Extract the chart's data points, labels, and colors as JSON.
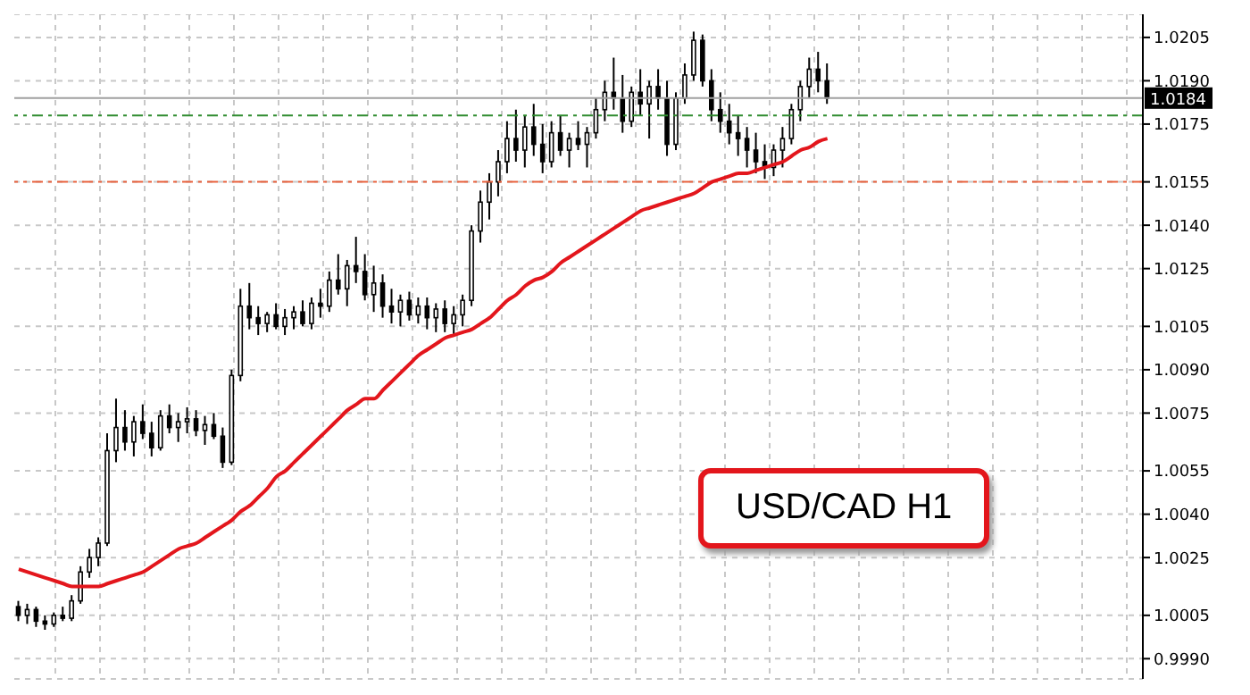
{
  "chart_data": {
    "type": "candlestick",
    "categories": [
      null,
      null,
      null,
      null,
      null,
      null,
      null,
      null,
      null,
      null,
      null,
      null,
      null,
      null,
      null,
      null,
      null,
      null,
      null,
      null,
      null,
      null,
      null,
      null,
      null,
      null,
      null,
      null,
      null,
      null,
      null,
      null,
      null,
      null,
      null,
      null,
      null,
      null,
      null,
      null,
      null,
      null,
      null,
      null,
      null,
      null,
      null,
      null,
      null,
      null,
      null,
      null,
      null,
      null,
      null,
      null,
      null,
      null,
      null,
      null,
      null,
      null,
      null,
      null,
      null,
      null,
      null,
      null,
      null,
      null,
      null,
      null,
      null,
      null,
      null,
      null,
      null,
      null,
      null,
      null,
      null,
      null,
      null,
      null,
      null,
      null,
      null,
      null,
      null,
      null,
      null,
      null,
      null,
      null,
      null,
      null,
      null,
      null,
      null,
      null,
      null,
      null,
      null,
      null,
      null,
      null,
      null,
      null,
      null,
      null,
      null,
      null,
      null,
      null,
      null,
      null,
      null,
      null,
      null,
      null,
      null,
      null,
      null,
      null,
      null,
      null,
      null
    ],
    "ohlc": [
      [
        1.0008,
        1.001,
        1.0003,
        1.0005
      ],
      [
        1.0005,
        1.0009,
        1.0002,
        1.0007
      ],
      [
        1.0007,
        1.0008,
        1.0001,
        1.0003
      ],
      [
        1.0003,
        1.0005,
        1.0,
        1.0002
      ],
      [
        1.0002,
        1.0006,
        1.0001,
        1.0005
      ],
      [
        1.0005,
        1.0008,
        1.0003,
        1.0004
      ],
      [
        1.0004,
        1.0012,
        1.0003,
        1.001
      ],
      [
        1.001,
        1.0022,
        1.0009,
        1.002
      ],
      [
        1.002,
        1.0028,
        1.0018,
        1.0025
      ],
      [
        1.0025,
        1.0032,
        1.0022,
        1.003
      ],
      [
        1.003,
        1.0068,
        1.0029,
        1.0062
      ],
      [
        1.0062,
        1.008,
        1.0058,
        1.007
      ],
      [
        1.007,
        1.0076,
        1.0062,
        1.0065
      ],
      [
        1.0065,
        1.0074,
        1.006,
        1.0072
      ],
      [
        1.0072,
        1.0078,
        1.0066,
        1.0068
      ],
      [
        1.0068,
        1.0072,
        1.006,
        1.0063
      ],
      [
        1.0063,
        1.0076,
        1.0062,
        1.0074
      ],
      [
        1.0074,
        1.0078,
        1.0068,
        1.007
      ],
      [
        1.007,
        1.0075,
        1.0065,
        1.0072
      ],
      [
        1.0072,
        1.0077,
        1.0068,
        1.0073
      ],
      [
        1.0073,
        1.0076,
        1.0067,
        1.0069
      ],
      [
        1.0069,
        1.0074,
        1.0064,
        1.0071
      ],
      [
        1.0071,
        1.0075,
        1.0066,
        1.0067
      ],
      [
        1.0067,
        1.007,
        1.0056,
        1.0058
      ],
      [
        1.0058,
        1.009,
        1.0057,
        1.0088
      ],
      [
        1.0088,
        1.0118,
        1.0086,
        1.0112
      ],
      [
        1.0112,
        1.012,
        1.0104,
        1.0108
      ],
      [
        1.0108,
        1.0112,
        1.0102,
        1.0106
      ],
      [
        1.0106,
        1.011,
        1.0103,
        1.0109
      ],
      [
        1.0109,
        1.0113,
        1.0104,
        1.0105
      ],
      [
        1.0105,
        1.0111,
        1.0102,
        1.0108
      ],
      [
        1.0108,
        1.0112,
        1.0104,
        1.011
      ],
      [
        1.011,
        1.0114,
        1.0105,
        1.0106
      ],
      [
        1.0106,
        1.0115,
        1.0104,
        1.0113
      ],
      [
        1.0113,
        1.0118,
        1.0108,
        1.0112
      ],
      [
        1.0112,
        1.0124,
        1.011,
        1.0121
      ],
      [
        1.0121,
        1.013,
        1.0116,
        1.0118
      ],
      [
        1.0118,
        1.0128,
        1.0112,
        1.0126
      ],
      [
        1.0126,
        1.0136,
        1.012,
        1.0124
      ],
      [
        1.0124,
        1.013,
        1.0114,
        1.0116
      ],
      [
        1.0116,
        1.0126,
        1.011,
        1.012
      ],
      [
        1.012,
        1.0123,
        1.0108,
        1.0112
      ],
      [
        1.0112,
        1.0118,
        1.0106,
        1.011
      ],
      [
        1.011,
        1.0116,
        1.0105,
        1.0114
      ],
      [
        1.0114,
        1.0117,
        1.0107,
        1.0109
      ],
      [
        1.0109,
        1.0115,
        1.0106,
        1.0112
      ],
      [
        1.0112,
        1.0115,
        1.0104,
        1.0108
      ],
      [
        1.0108,
        1.0113,
        1.0103,
        1.0111
      ],
      [
        1.0111,
        1.0114,
        1.0103,
        1.0106
      ],
      [
        1.0106,
        1.0112,
        1.0102,
        1.0109
      ],
      [
        1.0109,
        1.0116,
        1.0105,
        1.0114
      ],
      [
        1.0114,
        1.014,
        1.0112,
        1.0138
      ],
      [
        1.0138,
        1.0152,
        1.0134,
        1.0148
      ],
      [
        1.0148,
        1.0158,
        1.0142,
        1.0155
      ],
      [
        1.0155,
        1.0166,
        1.015,
        1.0162
      ],
      [
        1.0162,
        1.0176,
        1.0158,
        1.017
      ],
      [
        1.017,
        1.018,
        1.0162,
        1.0166
      ],
      [
        1.0166,
        1.0178,
        1.016,
        1.0174
      ],
      [
        1.0174,
        1.0182,
        1.0164,
        1.0168
      ],
      [
        1.0168,
        1.0175,
        1.0158,
        1.0162
      ],
      [
        1.0162,
        1.0176,
        1.016,
        1.0172
      ],
      [
        1.0172,
        1.0178,
        1.0164,
        1.0166
      ],
      [
        1.0166,
        1.0172,
        1.016,
        1.017
      ],
      [
        1.017,
        1.0176,
        1.0166,
        1.0168
      ],
      [
        1.0168,
        1.0174,
        1.016,
        1.0172
      ],
      [
        1.0172,
        1.0184,
        1.017,
        1.018
      ],
      [
        1.018,
        1.019,
        1.0176,
        1.0186
      ],
      [
        1.0186,
        1.0198,
        1.018,
        1.0184
      ],
      [
        1.0184,
        1.0192,
        1.0172,
        1.0176
      ],
      [
        1.0176,
        1.0188,
        1.0174,
        1.0186
      ],
      [
        1.0186,
        1.0194,
        1.0178,
        1.0182
      ],
      [
        1.0182,
        1.019,
        1.017,
        1.0188
      ],
      [
        1.0188,
        1.0194,
        1.018,
        1.0184
      ],
      [
        1.0184,
        1.019,
        1.0164,
        1.0168
      ],
      [
        1.0168,
        1.0186,
        1.0166,
        1.0184
      ],
      [
        1.0184,
        1.0196,
        1.0182,
        1.0192
      ],
      [
        1.0192,
        1.0207,
        1.019,
        1.0204
      ],
      [
        1.0204,
        1.0206,
        1.0188,
        1.019
      ],
      [
        1.019,
        1.0194,
        1.0176,
        1.018
      ],
      [
        1.018,
        1.0186,
        1.0172,
        1.0176
      ],
      [
        1.0176,
        1.0182,
        1.0168,
        1.0172
      ],
      [
        1.0172,
        1.0178,
        1.0164,
        1.017
      ],
      [
        1.017,
        1.0174,
        1.016,
        1.0166
      ],
      [
        1.0166,
        1.0172,
        1.0158,
        1.0162
      ],
      [
        1.0162,
        1.0168,
        1.0156,
        1.016
      ],
      [
        1.016,
        1.0168,
        1.0157,
        1.0166
      ],
      [
        1.0166,
        1.0174,
        1.016,
        1.017
      ],
      [
        1.017,
        1.0182,
        1.0168,
        1.018
      ],
      [
        1.018,
        1.019,
        1.0176,
        1.0188
      ],
      [
        1.0188,
        1.0198,
        1.0184,
        1.0194
      ],
      [
        1.0194,
        1.02,
        1.0186,
        1.019
      ],
      [
        1.019,
        1.0196,
        1.0182,
        1.0184
      ],
      null,
      null,
      null,
      null,
      null,
      null,
      null,
      null,
      null,
      null,
      null,
      null,
      null,
      null,
      null,
      null,
      null,
      null,
      null,
      null,
      null,
      null,
      null,
      null,
      null,
      null,
      null,
      null,
      null,
      null,
      null,
      null,
      null,
      null,
      null
    ],
    "series": [
      {
        "type": "line",
        "color": "#e3161c",
        "values": [
          1.0021,
          1.002,
          1.0019,
          1.0018,
          1.0017,
          1.0016,
          1.0015,
          1.0015,
          1.0015,
          1.0015,
          1.0016,
          1.0017,
          1.0018,
          1.0019,
          1.002,
          1.0022,
          1.0024,
          1.0026,
          1.0028,
          1.0029,
          1.003,
          1.0032,
          1.0034,
          1.0036,
          1.0038,
          1.0041,
          1.0043,
          1.0046,
          1.0049,
          1.0053,
          1.0055,
          1.0058,
          1.0061,
          1.0064,
          1.0067,
          1.007,
          1.0073,
          1.0076,
          1.0078,
          1.008,
          1.008,
          1.0083,
          1.0086,
          1.0089,
          1.0092,
          1.0095,
          1.0097,
          1.0099,
          1.0101,
          1.0102,
          1.0103,
          1.0104,
          1.0106,
          1.0108,
          1.0111,
          1.0114,
          1.0116,
          1.0119,
          1.0121,
          1.0122,
          1.0124,
          1.0127,
          1.0129,
          1.0131,
          1.0133,
          1.0135,
          1.0137,
          1.0139,
          1.0141,
          1.0143,
          1.0145,
          1.0146,
          1.0147,
          1.0148,
          1.0149,
          1.015,
          1.0151,
          1.0153,
          1.0155,
          1.0156,
          1.0157,
          1.0158,
          1.0158,
          1.0159,
          1.016,
          1.0161,
          1.0162,
          1.0164,
          1.0166,
          1.0167,
          1.0169,
          1.017,
          null,
          null,
          null,
          null,
          null,
          null,
          null,
          null,
          null,
          null,
          null,
          null,
          null,
          null,
          null,
          null,
          null,
          null,
          null,
          null,
          null,
          null,
          null,
          null,
          null,
          null,
          null,
          null,
          null,
          null,
          null,
          null,
          null,
          null,
          null
        ]
      }
    ],
    "ylim": [
      0.9983,
      1.0213
    ],
    "yticks": [
      {
        "value": 0.999,
        "label": "0.9990"
      },
      1.0005,
      1.0025,
      {
        "value": 1.004,
        "label": "1.0040"
      },
      1.0055,
      1.0075,
      {
        "value": 1.009,
        "label": "1.0090"
      },
      1.0105,
      1.0125,
      {
        "value": 1.014,
        "label": "1.0140"
      },
      1.0155,
      1.0175,
      {
        "value": 1.019,
        "label": "1.0190"
      },
      1.0205
    ],
    "ref_lines": [
      {
        "axis": "y",
        "value": 1.0184,
        "label": "1.0184",
        "color": "#a0a0a0",
        "line_style": "solid"
      },
      {
        "axis": "y",
        "value": 1.0178,
        "color": "#2e8b2e",
        "line_style": "dashed"
      },
      {
        "axis": "y",
        "value": 1.0155,
        "color": "#e8603c",
        "line_style": "dashed"
      }
    ],
    "annotations": [
      "USD/CAD H1"
    ],
    "grid": true,
    "marker": "none",
    "line_style": "solid",
    "legend": false
  }
}
